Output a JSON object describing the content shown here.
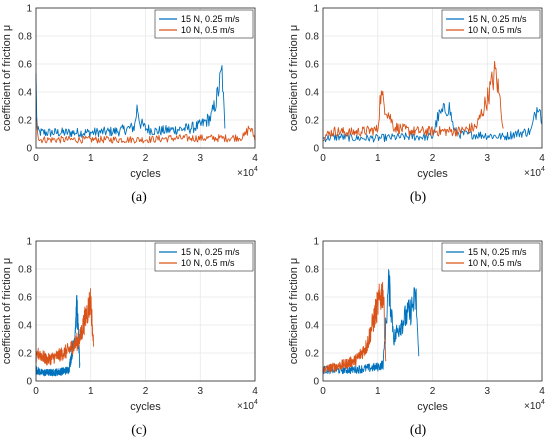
{
  "chart_data": [
    {
      "panel": "(a)",
      "type": "line",
      "xlabel": "cycles",
      "ylabel": "coefficient of friction μ",
      "x_multiplier": "×10^4",
      "xlim": [
        0,
        4
      ],
      "ylim": [
        0,
        1
      ],
      "xticks": [
        "0",
        "1",
        "2",
        "3",
        "4"
      ],
      "yticks": [
        "0",
        "0.2",
        "0.4",
        "0.6",
        "0.8",
        "1"
      ],
      "grid": true,
      "legend_position": "top-right",
      "series": [
        {
          "name": "15 N, 0.25 m/s",
          "color": "#0072BD",
          "x": [
            0,
            0.02,
            0.1,
            0.5,
            1.0,
            1.5,
            1.8,
            1.85,
            1.9,
            2.0,
            2.2,
            2.5,
            2.8,
            3.0,
            3.2,
            3.3,
            3.4,
            3.45
          ],
          "y": [
            0.5,
            0.12,
            0.11,
            0.11,
            0.11,
            0.12,
            0.15,
            0.3,
            0.18,
            0.14,
            0.12,
            0.13,
            0.14,
            0.16,
            0.22,
            0.35,
            0.55,
            0.12
          ]
        },
        {
          "name": "10 N, 0.5 m/s",
          "color": "#D95319",
          "x": [
            0,
            0.05,
            0.5,
            1.0,
            1.5,
            2.0,
            2.5,
            3.0,
            3.5,
            3.8,
            3.9,
            4.0
          ],
          "y": [
            0.25,
            0.06,
            0.06,
            0.06,
            0.06,
            0.06,
            0.07,
            0.07,
            0.07,
            0.08,
            0.15,
            0.07
          ]
        }
      ]
    },
    {
      "panel": "(b)",
      "type": "line",
      "xlabel": "cycles",
      "ylabel": "coefficient of friction μ",
      "x_multiplier": "×10^4",
      "xlim": [
        0,
        4
      ],
      "ylim": [
        0,
        1
      ],
      "xticks": [
        "0",
        "1",
        "2",
        "3",
        "4"
      ],
      "yticks": [
        "0",
        "0.2",
        "0.4",
        "0.6",
        "0.8",
        "1"
      ],
      "grid": true,
      "legend_position": "top-right",
      "series": [
        {
          "name": "15 N, 0.25 m/s",
          "color": "#0072BD",
          "x": [
            0,
            0.3,
            0.6,
            1.0,
            1.5,
            2.0,
            2.1,
            2.3,
            2.4,
            2.5,
            3.0,
            3.3,
            3.5,
            3.8,
            3.95,
            4.0
          ],
          "y": [
            0.07,
            0.08,
            0.07,
            0.07,
            0.08,
            0.08,
            0.22,
            0.3,
            0.12,
            0.1,
            0.09,
            0.08,
            0.1,
            0.12,
            0.35,
            0.15
          ]
        },
        {
          "name": "10 N, 0.5 m/s",
          "color": "#D95319",
          "x": [
            0,
            0.2,
            0.5,
            1.0,
            1.05,
            1.3,
            1.6,
            2.0,
            2.5,
            2.8,
            3.0,
            3.15,
            3.25,
            3.3
          ],
          "y": [
            0.08,
            0.12,
            0.11,
            0.13,
            0.38,
            0.15,
            0.12,
            0.12,
            0.12,
            0.15,
            0.35,
            0.55,
            0.3,
            0.12
          ]
        }
      ]
    },
    {
      "panel": "(c)",
      "type": "line",
      "xlabel": "cycles",
      "ylabel": "coefficient of friction μ",
      "x_multiplier": "×10^4",
      "xlim": [
        0,
        4
      ],
      "ylim": [
        0,
        1
      ],
      "xticks": [
        "0",
        "1",
        "2",
        "3",
        "4"
      ],
      "yticks": [
        "0",
        "0.2",
        "0.4",
        "0.6",
        "0.8",
        "1"
      ],
      "grid": true,
      "legend_position": "top-right",
      "series": [
        {
          "name": "15 N, 0.25 m/s",
          "color": "#0072BD",
          "x": [
            0,
            0.1,
            0.3,
            0.5,
            0.6,
            0.7,
            0.75,
            0.8
          ],
          "y": [
            0.08,
            0.06,
            0.06,
            0.07,
            0.08,
            0.3,
            0.55,
            0.1
          ]
        },
        {
          "name": "10 N, 0.5 m/s",
          "color": "#D95319",
          "x": [
            0,
            0.05,
            0.2,
            0.4,
            0.6,
            0.8,
            0.9,
            1.0,
            1.05
          ],
          "y": [
            0.15,
            0.2,
            0.15,
            0.18,
            0.22,
            0.3,
            0.45,
            0.58,
            0.25
          ]
        }
      ]
    },
    {
      "panel": "(d)",
      "type": "line",
      "xlabel": "cycles",
      "ylabel": "coefficient of friction μ",
      "x_multiplier": "×10^4",
      "xlim": [
        0,
        4
      ],
      "ylim": [
        0,
        1
      ],
      "xticks": [
        "0",
        "1",
        "2",
        "3",
        "4"
      ],
      "yticks": [
        "0",
        "0.2",
        "0.4",
        "0.6",
        "0.8",
        "1"
      ],
      "grid": true,
      "legend_position": "top-right",
      "series": [
        {
          "name": "15 N, 0.25 m/s",
          "color": "#0072BD",
          "x": [
            0,
            0.2,
            0.5,
            0.8,
            1.0,
            1.1,
            1.2,
            1.3,
            1.4,
            1.5,
            1.6,
            1.7,
            1.75
          ],
          "y": [
            0.08,
            0.08,
            0.08,
            0.09,
            0.1,
            0.12,
            0.7,
            0.3,
            0.4,
            0.45,
            0.5,
            0.6,
            0.15
          ]
        },
        {
          "name": "10 N, 0.5 m/s",
          "color": "#D95319",
          "x": [
            0,
            0.2,
            0.4,
            0.6,
            0.8,
            0.9,
            1.0,
            1.1,
            1.15
          ],
          "y": [
            0.08,
            0.1,
            0.12,
            0.15,
            0.25,
            0.4,
            0.55,
            0.65,
            0.12
          ]
        }
      ]
    }
  ],
  "captions": [
    "(a)",
    "(b)",
    "(c)",
    "(d)"
  ]
}
